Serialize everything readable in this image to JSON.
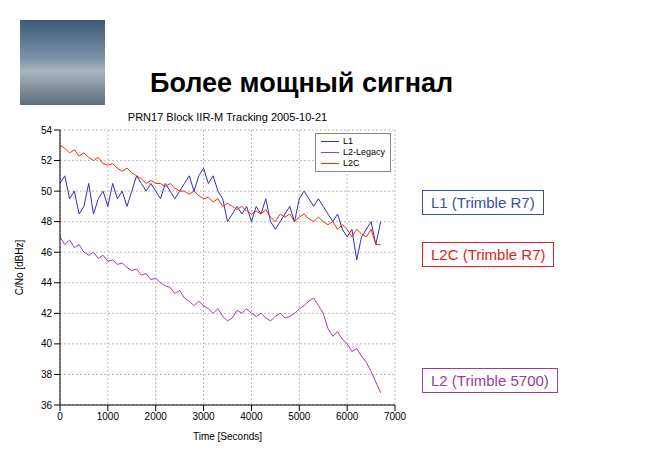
{
  "slide": {
    "title": "Более мощный сигнал"
  },
  "chart_data": {
    "type": "line",
    "title": "PRN17 Block IIR-M Tracking 2005-10-21",
    "x_label": "Time [Seconds]",
    "y_label": "C/No [dBHz]",
    "x": [
      0,
      100,
      200,
      300,
      400,
      500,
      600,
      700,
      800,
      900,
      1000,
      1100,
      1200,
      1300,
      1400,
      1500,
      1600,
      1700,
      1800,
      1900,
      2000,
      2100,
      2200,
      2300,
      2400,
      2500,
      2600,
      2700,
      2800,
      2900,
      3000,
      3100,
      3200,
      3300,
      3400,
      3500,
      3600,
      3700,
      3800,
      3900,
      4000,
      4100,
      4200,
      4300,
      4400,
      4500,
      4600,
      4700,
      4800,
      4900,
      5000,
      5100,
      5200,
      5300,
      5400,
      5500,
      5600,
      5700,
      5800,
      5900,
      6000,
      6100,
      6200,
      6300,
      6400,
      6500,
      6600,
      6700
    ],
    "series": [
      {
        "name": "L1",
        "color": "#2f2fc8",
        "values": [
          50.5,
          51,
          49.5,
          50,
          48.5,
          49,
          50.5,
          48.5,
          49.5,
          50,
          49,
          50.5,
          49.5,
          50,
          49,
          50,
          51,
          50.5,
          50,
          50.5,
          50,
          49.5,
          50.5,
          50,
          49.5,
          50,
          50.5,
          51,
          50,
          51,
          51.5,
          50.5,
          51,
          50,
          49.5,
          48,
          48.5,
          49,
          48.5,
          49,
          48,
          49,
          48.5,
          49.5,
          48,
          47.5,
          48,
          48.5,
          49,
          48,
          49.5,
          50,
          49.5,
          49,
          49.5,
          49,
          48.5,
          48,
          48.5,
          47.5,
          47,
          47.5,
          45.5,
          47,
          47.5,
          48,
          46.5,
          48
        ]
      },
      {
        "name": "L2-Legacy",
        "color": "#a63ca6",
        "values": [
          47,
          46.5,
          46.8,
          46.3,
          46.5,
          46,
          45.8,
          46,
          45.6,
          45.8,
          45.4,
          45.5,
          45.2,
          45.3,
          45,
          44.8,
          44.9,
          44.5,
          44.6,
          44.2,
          44.3,
          44,
          43.8,
          43.7,
          43.3,
          43.5,
          43,
          42.8,
          42.5,
          42.8,
          42.5,
          42.3,
          42,
          42.3,
          41.8,
          41.5,
          41.7,
          42.2,
          42,
          42.3,
          42,
          41.8,
          42,
          41.7,
          41.5,
          41.8,
          42,
          41.7,
          41.8,
          42,
          42.3,
          42.5,
          42.8,
          43,
          42.5,
          42,
          41,
          40.5,
          40.8,
          40.3,
          40,
          39.5,
          39.7,
          39.2,
          38.8,
          38.2,
          37.5,
          36.8
        ]
      },
      {
        "name": "L2C",
        "color": "#ff2a00",
        "values": [
          53,
          52.8,
          52.5,
          52.7,
          52.3,
          52.5,
          52.2,
          52,
          52.2,
          51.8,
          51.7,
          51.8,
          51.5,
          51.3,
          51.5,
          51.2,
          51,
          50.8,
          50.5,
          50.7,
          50.5,
          50.5,
          50.3,
          50.5,
          50.2,
          50,
          50,
          49.8,
          50,
          49.7,
          49.5,
          49.6,
          49.3,
          49.5,
          49,
          49.2,
          49,
          48.8,
          49,
          48.7,
          48.5,
          48.7,
          48.5,
          48.8,
          48.3,
          48,
          48.5,
          48.3,
          48.5,
          48,
          48.3,
          48.5,
          48.2,
          48,
          48.3,
          48,
          47.8,
          48,
          47.5,
          47.8,
          47.5,
          47,
          47.5,
          47.2,
          47,
          47.5,
          46.5,
          46.5
        ]
      }
    ],
    "xlim": [
      0,
      7000
    ],
    "xticks": [
      0,
      1000,
      2000,
      3000,
      4000,
      5000,
      6000,
      7000
    ],
    "ylim": [
      36,
      54
    ],
    "yticks": [
      36,
      38,
      40,
      42,
      44,
      46,
      48,
      50,
      52,
      54
    ],
    "grid": true,
    "legend": "upper right",
    "annotations": [
      {
        "text": "L1 (Trimble R7)",
        "color": "#3b4ea6"
      },
      {
        "text": "L2C (Trimble R7)",
        "color": "#e0201a"
      },
      {
        "text": "L2 (Trimble 5700)",
        "color": "#9a3c9a"
      }
    ]
  }
}
